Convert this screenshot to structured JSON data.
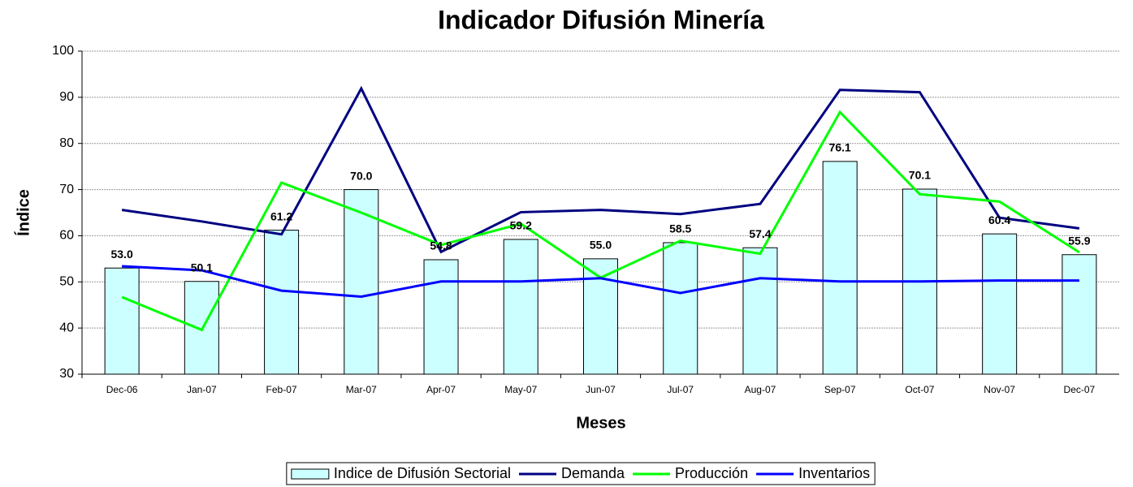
{
  "chart_data": {
    "type": "bar",
    "title": "Indicador Difusión Minería",
    "x_label": "Meses",
    "y_label": "Índice",
    "categories": [
      "Dec-06",
      "Jan-07",
      "Feb-07",
      "Mar-07",
      "Apr-07",
      "May-07",
      "Jun-07",
      "Jul-07",
      "Aug-07",
      "Sep-07",
      "Oct-07",
      "Nov-07",
      "Dec-07"
    ],
    "series": [
      {
        "name": "Indice de Difusión Sectorial",
        "type": "bar",
        "color": "#ccffff",
        "values": [
          53.0,
          50.1,
          61.2,
          70.0,
          54.8,
          59.2,
          55.0,
          58.5,
          57.4,
          76.1,
          70.1,
          60.4,
          55.9
        ],
        "value_labels": [
          "53.0",
          "50.1",
          "61.2",
          "70.0",
          "54.8",
          "59.2",
          "55.0",
          "58.5",
          "57.4",
          "76.1",
          "70.1",
          "60.4",
          "55.9"
        ]
      },
      {
        "name": "Demanda",
        "type": "line",
        "color": "#000080",
        "values": [
          65.6,
          63.1,
          60.3,
          91.9,
          56.5,
          65.1,
          65.6,
          64.7,
          66.9,
          91.6,
          91.1,
          63.9,
          61.6
        ]
      },
      {
        "name": "Producción",
        "type": "line",
        "color": "#00ff00",
        "values": [
          46.7,
          39.6,
          71.5,
          65.0,
          58.0,
          62.6,
          50.9,
          58.9,
          56.1,
          86.8,
          69.0,
          67.4,
          56.4
        ]
      },
      {
        "name": "Inventarios",
        "type": "line",
        "color": "#0000ff",
        "values": [
          53.4,
          52.5,
          48.1,
          46.8,
          50.1,
          50.1,
          50.8,
          47.6,
          50.8,
          50.1,
          50.1,
          50.3,
          50.3
        ]
      }
    ],
    "ylim": [
      30,
      100
    ],
    "yticks": [
      30,
      40,
      50,
      60,
      70,
      80,
      90,
      100
    ],
    "grid": true,
    "legend": "bottom"
  }
}
